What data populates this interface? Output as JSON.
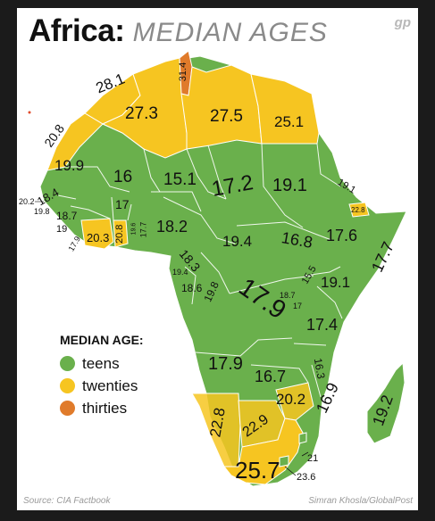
{
  "title": {
    "bold": "Africa:",
    "light": "MEDIAN AGES"
  },
  "logo_text": "gp",
  "colors": {
    "teens": "#6ab04c",
    "twenties": "#f6c521",
    "thirties": "#e07b2b",
    "border": "#ffffff"
  },
  "legend": {
    "title": "MEDIAN AGE:",
    "items": [
      {
        "label": "teens",
        "color": "#6ab04c"
      },
      {
        "label": "twenties",
        "color": "#f6c521"
      },
      {
        "label": "thirties",
        "color": "#e07b2b"
      }
    ]
  },
  "countries": [
    {
      "name": "Morocco",
      "value": "28.1"
    },
    {
      "name": "Tunisia",
      "value": "31.4"
    },
    {
      "name": "Algeria",
      "value": "27.3"
    },
    {
      "name": "Libya",
      "value": "27.5"
    },
    {
      "name": "Egypt",
      "value": "25.1"
    },
    {
      "name": "Western Sahara",
      "value": "20.8"
    },
    {
      "name": "Mauritania",
      "value": "19.9"
    },
    {
      "name": "Mali",
      "value": "16"
    },
    {
      "name": "Niger",
      "value": "15.1"
    },
    {
      "name": "Chad",
      "value": "17.2"
    },
    {
      "name": "Sudan",
      "value": "19.1"
    },
    {
      "name": "Eritrea",
      "value": "19.1"
    },
    {
      "name": "Senegal",
      "value": "18.4"
    },
    {
      "name": "Gambia",
      "value": "20.2"
    },
    {
      "name": "Guinea-Bissau",
      "value": "19.8"
    },
    {
      "name": "Guinea",
      "value": "18.7"
    },
    {
      "name": "Sierra Leone",
      "value": "19"
    },
    {
      "name": "Liberia",
      "value": "17.9"
    },
    {
      "name": "Cote d'Ivoire",
      "value": "20.3"
    },
    {
      "name": "Burkina Faso",
      "value": "17"
    },
    {
      "name": "Ghana",
      "value": "20.8"
    },
    {
      "name": "Togo",
      "value": "19.6"
    },
    {
      "name": "Benin",
      "value": "17.7"
    },
    {
      "name": "Nigeria",
      "value": "18.2"
    },
    {
      "name": "Djibouti",
      "value": "22.8"
    },
    {
      "name": "Ethiopia",
      "value": "17.6"
    },
    {
      "name": "Somalia",
      "value": "17.7"
    },
    {
      "name": "Central African Republic",
      "value": "19.4"
    },
    {
      "name": "South Sudan",
      "value": "16.8"
    },
    {
      "name": "Cameroon",
      "value": "18.3"
    },
    {
      "name": "Equatorial Guinea",
      "value": "19.4"
    },
    {
      "name": "Gabon",
      "value": "18.6"
    },
    {
      "name": "Congo",
      "value": "19.8"
    },
    {
      "name": "DR Congo",
      "value": "17.9"
    },
    {
      "name": "Uganda",
      "value": "15.5"
    },
    {
      "name": "Kenya",
      "value": "19.1"
    },
    {
      "name": "Rwanda",
      "value": "18.7"
    },
    {
      "name": "Burundi",
      "value": "17"
    },
    {
      "name": "Tanzania",
      "value": "17.4"
    },
    {
      "name": "Angola",
      "value": "17.9"
    },
    {
      "name": "Zambia",
      "value": "16.7"
    },
    {
      "name": "Malawi",
      "value": "16.3"
    },
    {
      "name": "Mozambique",
      "value": "16.9"
    },
    {
      "name": "Zimbabwe",
      "value": "20.2"
    },
    {
      "name": "Namibia",
      "value": "22.8"
    },
    {
      "name": "Botswana",
      "value": "22.9"
    },
    {
      "name": "South Africa",
      "value": "25.7"
    },
    {
      "name": "Swaziland",
      "value": "21"
    },
    {
      "name": "Lesotho",
      "value": "23.6"
    },
    {
      "name": "Madagascar",
      "value": "19.2"
    }
  ],
  "footer": {
    "source": "Source: CIA Factbook",
    "credit": "Simran Khosla/GlobalPost"
  }
}
